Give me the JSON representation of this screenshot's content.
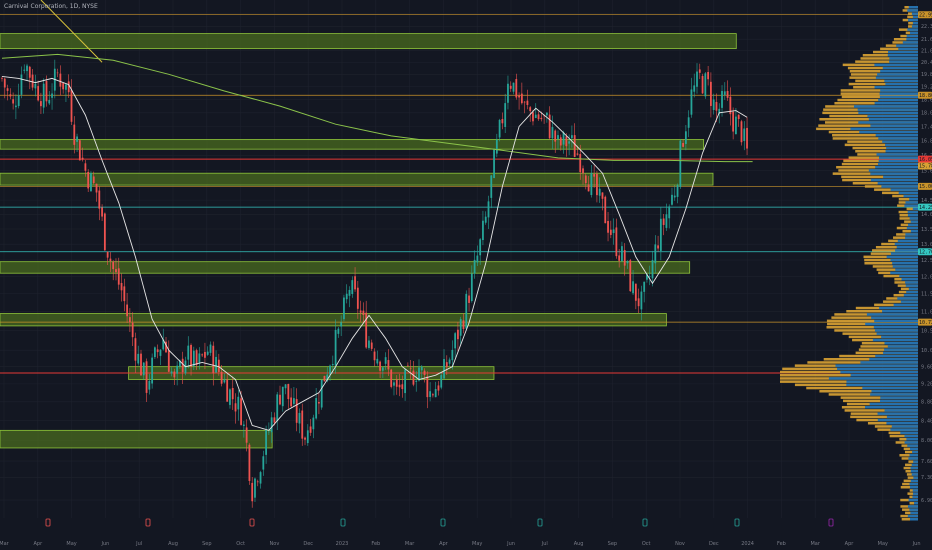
{
  "header": {
    "title": "Carnival Corporation, 1D, NYSE"
  },
  "colors": {
    "background": "#131722",
    "bull": "#26a69a",
    "bear": "#ef5350",
    "zone_fill": "#4a6b1f",
    "zone_border": "#8fc53a",
    "orange_line": "#c9932a",
    "teal_line": "#34c6c0",
    "red_line": "#e53935",
    "ma_short": "#e6e6e6",
    "ma_long": "#8bc34a",
    "vp_blue": "#1e6fb4",
    "vp_gold": "#d7a133",
    "trend_line": "#d6c13a"
  },
  "chart_data": {
    "type": "candlestick",
    "title": "Carnival Corporation, 1D, NYSE",
    "x_axis": {
      "labels": [
        "Mar",
        "Apr",
        "May",
        "Jun",
        "Jul",
        "Aug",
        "Sep",
        "Oct",
        "Nov",
        "Dec",
        "2023",
        "Feb",
        "Mar",
        "Apr",
        "May",
        "Jun",
        "Jul",
        "Aug",
        "Sep",
        "Oct",
        "Nov",
        "Dec",
        "2024",
        "Feb",
        "Mar",
        "Apr",
        "May",
        "Jun"
      ]
    },
    "y_axis": {
      "scale": "log",
      "range": [
        6.6,
        23.8
      ],
      "tick_labels": [
        "23.00",
        "22.30",
        "21.60",
        "21.00",
        "20.40",
        "19.80",
        "19.20",
        "18.60",
        "18.00",
        "17.40",
        "16.80",
        "16.20",
        "15.60",
        "15.00",
        "14.50",
        "14.00",
        "13.50",
        "13.00",
        "12.50",
        "12.00",
        "11.50",
        "11.00",
        "10.50",
        "10.00",
        "9.60",
        "9.20",
        "8.80",
        "8.40",
        "8.00",
        "7.60",
        "7.30",
        "6.90"
      ]
    },
    "price_tags": [
      "22.95",
      "18.80",
      "16.05",
      "15.78",
      "15.00",
      "14.25",
      "12.76",
      "10.72"
    ],
    "last_price": "15.78",
    "horizontal_lines": [
      {
        "price": 22.95,
        "kind": "orange"
      },
      {
        "price": 18.8,
        "kind": "orange"
      },
      {
        "price": 16.05,
        "kind": "red"
      },
      {
        "price": 15.0,
        "kind": "orange"
      },
      {
        "price": 14.25,
        "kind": "teal"
      },
      {
        "price": 12.76,
        "kind": "teal"
      },
      {
        "price": 10.72,
        "kind": "orange"
      },
      {
        "price": 9.45,
        "kind": "red"
      }
    ],
    "zones": [
      {
        "x_start": 0.0,
        "x_end": 0.79,
        "top": 21.9,
        "bottom": 21.1
      },
      {
        "x_start": 0.0,
        "x_end": 0.755,
        "top": 16.85,
        "bottom": 16.45
      },
      {
        "x_start": 0.0,
        "x_end": 0.765,
        "top": 15.5,
        "bottom": 15.05
      },
      {
        "x_start": 0.0,
        "x_end": 0.74,
        "top": 12.45,
        "bottom": 12.1
      },
      {
        "x_start": 0.0,
        "x_end": 0.715,
        "top": 10.95,
        "bottom": 10.62
      },
      {
        "x_start": 0.138,
        "x_end": 0.53,
        "top": 9.6,
        "bottom": 9.3
      },
      {
        "x_start": 0.0,
        "x_end": 0.292,
        "top": 8.2,
        "bottom": 7.85
      }
    ],
    "price_path": [
      [
        0,
        19.6
      ],
      [
        4,
        18.2
      ],
      [
        8,
        20.5
      ],
      [
        12,
        19.2
      ],
      [
        16,
        18.6
      ],
      [
        20,
        19.8
      ],
      [
        24,
        19.0
      ],
      [
        26,
        17.2
      ],
      [
        30,
        15.6
      ],
      [
        34,
        14.8
      ],
      [
        37,
        13.2
      ],
      [
        40,
        12.2
      ],
      [
        43,
        11.6
      ],
      [
        46,
        10.6
      ],
      [
        49,
        9.8
      ],
      [
        52,
        9.2
      ],
      [
        55,
        9.8
      ],
      [
        58,
        10.3
      ],
      [
        62,
        9.2
      ],
      [
        66,
        9.9
      ],
      [
        70,
        9.6
      ],
      [
        74,
        10.0
      ],
      [
        78,
        9.5
      ],
      [
        82,
        9.0
      ],
      [
        86,
        8.6
      ],
      [
        88,
        7.9
      ],
      [
        90,
        7.1
      ],
      [
        93,
        7.6
      ],
      [
        97,
        8.4
      ],
      [
        101,
        9.2
      ],
      [
        105,
        8.6
      ],
      [
        109,
        8.1
      ],
      [
        113,
        8.8
      ],
      [
        117,
        9.6
      ],
      [
        121,
        10.4
      ],
      [
        125,
        11.7
      ],
      [
        128,
        11.2
      ],
      [
        131,
        10.4
      ],
      [
        134,
        10.0
      ],
      [
        138,
        9.6
      ],
      [
        142,
        9.0
      ],
      [
        146,
        9.3
      ],
      [
        150,
        9.6
      ],
      [
        154,
        9.0
      ],
      [
        158,
        9.3
      ],
      [
        162,
        10.0
      ],
      [
        166,
        10.9
      ],
      [
        170,
        12.2
      ],
      [
        174,
        13.8
      ],
      [
        177,
        15.9
      ],
      [
        180,
        17.8
      ],
      [
        182,
        19.7
      ],
      [
        185,
        19.0
      ],
      [
        188,
        18.2
      ],
      [
        192,
        17.9
      ],
      [
        196,
        17.6
      ],
      [
        200,
        16.6
      ],
      [
        204,
        16.8
      ],
      [
        208,
        16.1
      ],
      [
        212,
        15.1
      ],
      [
        216,
        14.2
      ],
      [
        220,
        13.2
      ],
      [
        224,
        12.4
      ],
      [
        227,
        11.6
      ],
      [
        230,
        11.2
      ],
      [
        233,
        12.0
      ],
      [
        236,
        13.2
      ],
      [
        239,
        14.0
      ],
      [
        242,
        14.9
      ],
      [
        245,
        17.0
      ],
      [
        248,
        18.8
      ],
      [
        251,
        19.6
      ],
      [
        254,
        19.2
      ],
      [
        257,
        18.0
      ],
      [
        260,
        18.6
      ],
      [
        263,
        17.7
      ],
      [
        266,
        17.2
      ],
      [
        268,
        16.3
      ]
    ],
    "ma_short": [
      [
        0,
        19.7
      ],
      [
        6,
        19.6
      ],
      [
        12,
        19.4
      ],
      [
        18,
        19.6
      ],
      [
        24,
        19.3
      ],
      [
        30,
        17.9
      ],
      [
        36,
        16.0
      ],
      [
        42,
        14.4
      ],
      [
        48,
        12.6
      ],
      [
        54,
        10.8
      ],
      [
        60,
        10.0
      ],
      [
        66,
        9.6
      ],
      [
        72,
        9.7
      ],
      [
        78,
        9.6
      ],
      [
        84,
        9.3
      ],
      [
        90,
        8.3
      ],
      [
        96,
        8.2
      ],
      [
        102,
        8.6
      ],
      [
        108,
        8.8
      ],
      [
        114,
        9.0
      ],
      [
        120,
        9.6
      ],
      [
        126,
        10.3
      ],
      [
        132,
        10.9
      ],
      [
        138,
        10.3
      ],
      [
        144,
        9.6
      ],
      [
        150,
        9.3
      ],
      [
        156,
        9.4
      ],
      [
        162,
        9.6
      ],
      [
        168,
        10.7
      ],
      [
        174,
        12.4
      ],
      [
        180,
        15.0
      ],
      [
        186,
        17.4
      ],
      [
        192,
        18.2
      ],
      [
        198,
        17.6
      ],
      [
        204,
        16.9
      ],
      [
        210,
        16.2
      ],
      [
        216,
        15.5
      ],
      [
        222,
        14.0
      ],
      [
        228,
        12.6
      ],
      [
        234,
        11.8
      ],
      [
        240,
        12.6
      ],
      [
        246,
        14.2
      ],
      [
        252,
        16.3
      ],
      [
        258,
        18.0
      ],
      [
        264,
        18.1
      ],
      [
        268,
        17.8
      ]
    ],
    "ma_long": [
      [
        0,
        20.6
      ],
      [
        20,
        20.8
      ],
      [
        40,
        20.5
      ],
      [
        60,
        19.8
      ],
      [
        80,
        19.0
      ],
      [
        100,
        18.3
      ],
      [
        120,
        17.5
      ],
      [
        140,
        17.0
      ],
      [
        160,
        16.7
      ],
      [
        180,
        16.4
      ],
      [
        200,
        16.1
      ],
      [
        220,
        16.0
      ],
      [
        240,
        16.0
      ],
      [
        260,
        15.95
      ],
      [
        270,
        15.95
      ]
    ],
    "trend_line": [
      [
        14,
        23.8
      ],
      [
        36,
        20.4
      ]
    ]
  }
}
